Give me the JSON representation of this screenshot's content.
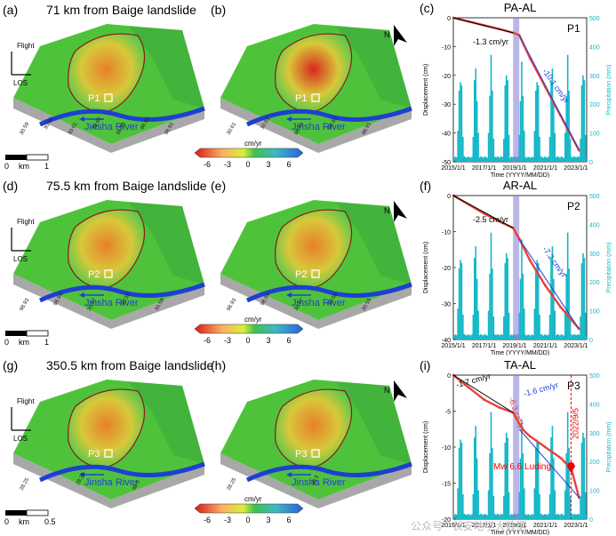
{
  "colors": {
    "red": "#e8403a",
    "blue": "#1f3fd0",
    "cyan": "#17b8c8",
    "gray": "#9a9a9a",
    "violet": "#8a86d8"
  },
  "rows": [
    {
      "left_label": "(a)",
      "right_label": "(b)",
      "title": "71 km from Baige landslide",
      "point": "P1",
      "river": "Jinsha River",
      "flight": "Flight",
      "los": "LOS",
      "coords_a": [
        "30.59",
        "30.60",
        "30.61",
        "30.62",
        "98.93",
        "98.92",
        "98.91"
      ],
      "coords_b": [
        "30.61",
        "30.62",
        "98.93",
        "98.92",
        "98.91"
      ],
      "scale": {
        "zero": "0",
        "unit": "km",
        "max": "1"
      },
      "colorbar": {
        "unit": "cm/yr",
        "ticks": [
          "-6",
          "-3",
          "0",
          "3",
          "6"
        ]
      }
    },
    {
      "left_label": "(d)",
      "right_label": "(e)",
      "title": "75.5 km from Baige landslide",
      "point": "P2",
      "river": "Jinsha River",
      "flight": "Flight",
      "los": "LOS",
      "coords_a": [
        "98.93",
        "98.94",
        "30.57",
        "30.58",
        "30.59"
      ],
      "coords_b": [
        "98.93",
        "98.94",
        "30.57",
        "30.58",
        "30.59"
      ],
      "scale": {
        "zero": "0",
        "unit": "km",
        "max": "1"
      },
      "colorbar": {
        "unit": "cm/yr",
        "ticks": [
          "-6",
          "-3",
          "0",
          "3",
          "6"
        ]
      }
    },
    {
      "left_label": "(g)",
      "right_label": "(h)",
      "title": "350.5 km from Baige landslide",
      "point": "P3",
      "river": "Jinsha River",
      "flight": "Flight",
      "los": "LOS",
      "coords_a": [
        "28.25",
        "28.25",
        "98.5"
      ],
      "coords_b": [
        "28.25",
        "98.5"
      ],
      "scale": {
        "zero": "0",
        "unit": "km",
        "max": "0.5"
      },
      "colorbar": {
        "unit": "cm/yr",
        "ticks": [
          "-6",
          "-3",
          "0",
          "3",
          "6"
        ]
      }
    }
  ],
  "north_label": "N",
  "chart_data": [
    {
      "type": "line",
      "panel": "(c)",
      "title": "PA-AL",
      "point": "P1",
      "xlabel": "Time (YYYY/MM/DD)",
      "ylabel": "Displacement (cm)",
      "y2label": "Precipitation (mm)",
      "xticks": [
        "2015/1/1",
        "2017/1/1",
        "2019/1/1",
        "2021/1/1",
        "2023/1/1"
      ],
      "ylim": [
        -50,
        0
      ],
      "yticks": [
        "0",
        "-10",
        "-20",
        "-30",
        "-40",
        "-50"
      ],
      "y2lim": [
        0,
        500
      ],
      "y2ticks": [
        "500",
        "400",
        "300",
        "200",
        "100",
        "0"
      ],
      "rates": [
        "-1.3 cm/yr",
        "-10.1 cm/yr"
      ],
      "displacement": {
        "x": [
          2015.0,
          2016.0,
          2017.0,
          2018.0,
          2018.9,
          2019.3,
          2020.0,
          2021.0,
          2022.0,
          2023.2
        ],
        "y": [
          0,
          -1.3,
          -2.6,
          -3.9,
          -5.2,
          -6,
          -14,
          -24,
          -34,
          -46
        ]
      }
    },
    {
      "type": "line",
      "panel": "(f)",
      "title": "AR-AL",
      "point": "P2",
      "xlabel": "Time (YYYY/MM/DD)",
      "ylabel": "Displacement (cm)",
      "y2label": "Precipitation (mm)",
      "xticks": [
        "2015/1/1",
        "2017/1/1",
        "2019/1/1",
        "2021/1/1",
        "2023/1/1"
      ],
      "ylim": [
        -40,
        0
      ],
      "yticks": [
        "0",
        "-10",
        "-20",
        "-30",
        "-40"
      ],
      "y2lim": [
        0,
        500
      ],
      "y2ticks": [
        "500",
        "400",
        "300",
        "200",
        "100",
        "0"
      ],
      "rates": [
        "-2.5 cm/yr",
        "-7.2 cm/yr"
      ],
      "displacement": {
        "x": [
          2015.0,
          2016.0,
          2017.0,
          2018.0,
          2018.9,
          2019.3,
          2020.0,
          2021.0,
          2022.0,
          2023.2
        ],
        "y": [
          0,
          -2.5,
          -5,
          -7.2,
          -9,
          -12,
          -18,
          -25,
          -31,
          -37
        ]
      }
    },
    {
      "type": "line",
      "panel": "(i)",
      "title": "TA-AL",
      "point": "P3",
      "xlabel": "Time (YYYY/MM/DD)",
      "ylabel": "Displacement (cm)",
      "y2label": "Precipitation (mm)",
      "xticks": [
        "2015/1/1",
        "2017/1/1",
        "2019/1/1",
        "2021/1/1",
        "2023/1/1"
      ],
      "ylim": [
        -20,
        0
      ],
      "yticks": [
        "0",
        "-5",
        "-10",
        "-15",
        "-20"
      ],
      "y2lim": [
        0,
        500
      ],
      "y2ticks": [
        "500",
        "400",
        "300",
        "200",
        "100",
        "0"
      ],
      "rates": [
        "-1.7 cm/yr",
        "-6.3 cm/yr",
        "-1.6 cm/yr"
      ],
      "event": {
        "date": "2022/9/5",
        "label": "Mw 6.6 Luding"
      },
      "displacement": {
        "x": [
          2015.0,
          2016.0,
          2017.0,
          2018.0,
          2018.9,
          2019.5,
          2020.0,
          2021.0,
          2022.0,
          2022.7,
          2023.2
        ],
        "y": [
          0,
          -1.7,
          -3.4,
          -4.5,
          -5.2,
          -7.5,
          -8.5,
          -10,
          -11.5,
          -13,
          -17
        ]
      }
    }
  ],
  "watermark": "公众号 · 长安地学大数据"
}
